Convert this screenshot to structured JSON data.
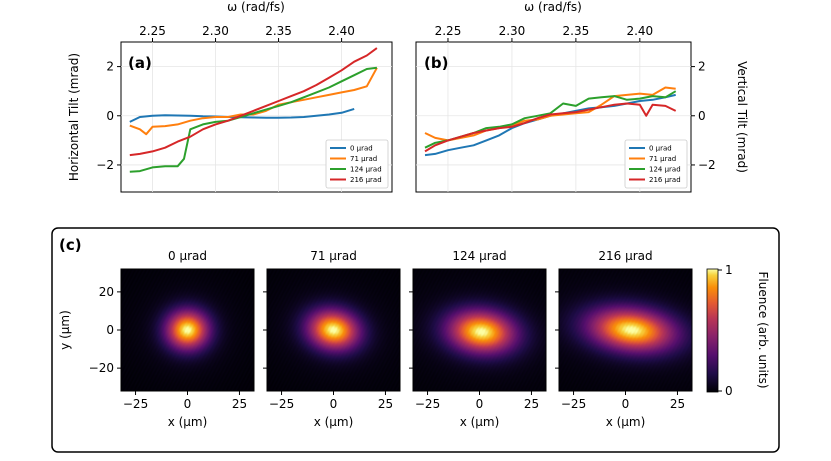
{
  "chart_data": [
    {
      "type": "line",
      "panel_label": "(a)",
      "xlabel": "ω (rad/fs)",
      "ylabel": "Horizontal Tilt (mrad)",
      "xlim": [
        2.225,
        2.44
      ],
      "ylim": [
        -3.1,
        3.0
      ],
      "xticks": [
        2.25,
        2.3,
        2.35,
        2.4
      ],
      "xtick_labels": [
        "2.25",
        "2.30",
        "2.35",
        "2.40"
      ],
      "yticks": [
        -2,
        0,
        2
      ],
      "ytick_labels": [
        "−2",
        "0",
        "2"
      ],
      "grid": true,
      "legend_position": "lower right",
      "series": [
        {
          "name": "0 μrad",
          "color": "#1f77b4",
          "x": [
            2.232,
            2.24,
            2.25,
            2.26,
            2.27,
            2.28,
            2.29,
            2.3,
            2.31,
            2.32,
            2.33,
            2.34,
            2.35,
            2.36,
            2.37,
            2.38,
            2.39,
            2.4,
            2.41
          ],
          "y": [
            -0.25,
            -0.05,
            0.0,
            0.02,
            0.01,
            0.0,
            -0.02,
            -0.03,
            -0.05,
            -0.06,
            -0.07,
            -0.08,
            -0.08,
            -0.07,
            -0.05,
            0.0,
            0.05,
            0.12,
            0.28
          ]
        },
        {
          "name": "71 μrad",
          "color": "#ff7f0e",
          "x": [
            2.232,
            2.24,
            2.245,
            2.25,
            2.26,
            2.27,
            2.28,
            2.29,
            2.3,
            2.31,
            2.32,
            2.33,
            2.34,
            2.35,
            2.36,
            2.37,
            2.38,
            2.39,
            2.4,
            2.41,
            2.42,
            2.428
          ],
          "y": [
            -0.4,
            -0.55,
            -0.75,
            -0.45,
            -0.42,
            -0.35,
            -0.2,
            -0.1,
            -0.05,
            -0.05,
            0.05,
            0.05,
            0.2,
            0.45,
            0.55,
            0.65,
            0.75,
            0.85,
            0.95,
            1.05,
            1.2,
            1.95
          ]
        },
        {
          "name": "124 μrad",
          "color": "#2ca02c",
          "x": [
            2.232,
            2.24,
            2.25,
            2.26,
            2.27,
            2.275,
            2.28,
            2.29,
            2.3,
            2.31,
            2.32,
            2.33,
            2.34,
            2.35,
            2.36,
            2.37,
            2.38,
            2.39,
            2.4,
            2.41,
            2.42,
            2.428
          ],
          "y": [
            -2.28,
            -2.25,
            -2.1,
            -2.05,
            -2.05,
            -1.75,
            -0.55,
            -0.35,
            -0.25,
            -0.2,
            -0.05,
            0.1,
            0.25,
            0.4,
            0.55,
            0.75,
            0.95,
            1.15,
            1.4,
            1.65,
            1.9,
            1.95
          ]
        },
        {
          "name": "216 μrad",
          "color": "#d62728",
          "x": [
            2.232,
            2.24,
            2.25,
            2.26,
            2.27,
            2.28,
            2.29,
            2.3,
            2.31,
            2.32,
            2.33,
            2.34,
            2.35,
            2.36,
            2.37,
            2.38,
            2.39,
            2.4,
            2.41,
            2.42,
            2.428
          ],
          "y": [
            -1.6,
            -1.55,
            -1.45,
            -1.3,
            -1.05,
            -0.85,
            -0.55,
            -0.35,
            -0.2,
            0.0,
            0.2,
            0.4,
            0.6,
            0.8,
            1.0,
            1.25,
            1.55,
            1.85,
            2.2,
            2.45,
            2.75
          ]
        }
      ]
    },
    {
      "type": "line",
      "panel_label": "(b)",
      "xlabel": "ω (rad/fs)",
      "ylabel": "Vertical Tilt (mrad)",
      "xlim": [
        2.225,
        2.44
      ],
      "ylim": [
        -3.1,
        3.0
      ],
      "xticks": [
        2.25,
        2.3,
        2.35,
        2.4
      ],
      "xtick_labels": [
        "2.25",
        "2.30",
        "2.35",
        "2.40"
      ],
      "yticks": [
        -2,
        0,
        2
      ],
      "ytick_labels": [
        "−2",
        "0",
        "2"
      ],
      "grid": true,
      "legend_position": "lower right",
      "series": [
        {
          "name": "0 μrad",
          "color": "#1f77b4",
          "x": [
            2.232,
            2.24,
            2.25,
            2.26,
            2.27,
            2.28,
            2.29,
            2.3,
            2.31,
            2.32,
            2.33,
            2.34,
            2.35,
            2.36,
            2.37,
            2.38,
            2.39,
            2.4,
            2.41,
            2.42,
            2.428
          ],
          "y": [
            -1.6,
            -1.55,
            -1.4,
            -1.3,
            -1.2,
            -1.0,
            -0.8,
            -0.5,
            -0.3,
            -0.15,
            0.0,
            0.1,
            0.2,
            0.3,
            0.35,
            0.4,
            0.5,
            0.6,
            0.65,
            0.75,
            0.85
          ]
        },
        {
          "name": "71 μrad",
          "color": "#ff7f0e",
          "x": [
            2.232,
            2.24,
            2.25,
            2.26,
            2.27,
            2.28,
            2.29,
            2.3,
            2.31,
            2.32,
            2.33,
            2.34,
            2.35,
            2.36,
            2.37,
            2.38,
            2.39,
            2.4,
            2.41,
            2.42,
            2.428
          ],
          "y": [
            -0.7,
            -0.9,
            -1.0,
            -0.9,
            -0.8,
            -0.6,
            -0.5,
            -0.4,
            -0.2,
            -0.15,
            0.0,
            0.05,
            0.1,
            0.15,
            0.45,
            0.8,
            0.85,
            0.9,
            0.85,
            1.15,
            1.1
          ]
        },
        {
          "name": "124 μrad",
          "color": "#2ca02c",
          "x": [
            2.232,
            2.24,
            2.25,
            2.26,
            2.27,
            2.28,
            2.29,
            2.3,
            2.31,
            2.32,
            2.33,
            2.34,
            2.35,
            2.36,
            2.37,
            2.38,
            2.39,
            2.4,
            2.41,
            2.42,
            2.428
          ],
          "y": [
            -1.3,
            -1.1,
            -1.0,
            -0.85,
            -0.7,
            -0.5,
            -0.45,
            -0.35,
            -0.1,
            0.0,
            0.1,
            0.5,
            0.4,
            0.7,
            0.75,
            0.8,
            0.65,
            0.7,
            0.8,
            0.75,
            1.0
          ]
        },
        {
          "name": "216 μrad",
          "color": "#d62728",
          "x": [
            2.232,
            2.24,
            2.25,
            2.26,
            2.27,
            2.28,
            2.29,
            2.3,
            2.31,
            2.32,
            2.33,
            2.34,
            2.35,
            2.36,
            2.37,
            2.38,
            2.39,
            2.4,
            2.405,
            2.41,
            2.42,
            2.428
          ],
          "y": [
            -1.45,
            -1.2,
            -1.0,
            -0.85,
            -0.7,
            -0.6,
            -0.5,
            -0.45,
            -0.3,
            -0.1,
            0.05,
            0.1,
            0.15,
            0.25,
            0.35,
            0.45,
            0.5,
            0.45,
            0.0,
            0.45,
            0.4,
            0.2
          ]
        }
      ]
    },
    {
      "type": "heatmap",
      "panel_label": "(c)",
      "ylabel": "y (μm)",
      "xlabel": "x (μm)",
      "xlim": [
        -32,
        32
      ],
      "ylim": [
        -32,
        32
      ],
      "xticks": [
        -25,
        0,
        25
      ],
      "xtick_labels": [
        "−25",
        "0",
        "25"
      ],
      "yticks": [
        20,
        0,
        -20
      ],
      "ytick_labels": [
        "20",
        "0",
        "−20"
      ],
      "colorbar_label": "Fluence (arb. units)",
      "colorbar_ticks": [
        0,
        1
      ],
      "colorbar_tick_labels": [
        "0",
        "1"
      ],
      "colormap": "inferno",
      "subplots": [
        {
          "title": "0 μrad",
          "center_x": 0,
          "center_y": 0,
          "sigma_x": 7.0,
          "sigma_y": 7.0,
          "rotation_deg": -20
        },
        {
          "title": "71 μrad",
          "center_x": 0,
          "center_y": 0,
          "sigma_x": 8.5,
          "sigma_y": 7.0,
          "rotation_deg": -15
        },
        {
          "title": "124 μrad",
          "center_x": 1,
          "center_y": -1,
          "sigma_x": 11.0,
          "sigma_y": 7.5,
          "rotation_deg": -8
        },
        {
          "title": "216 μrad",
          "center_x": 3,
          "center_y": 0,
          "sigma_x": 14.0,
          "sigma_y": 7.5,
          "rotation_deg": -8
        }
      ]
    }
  ]
}
